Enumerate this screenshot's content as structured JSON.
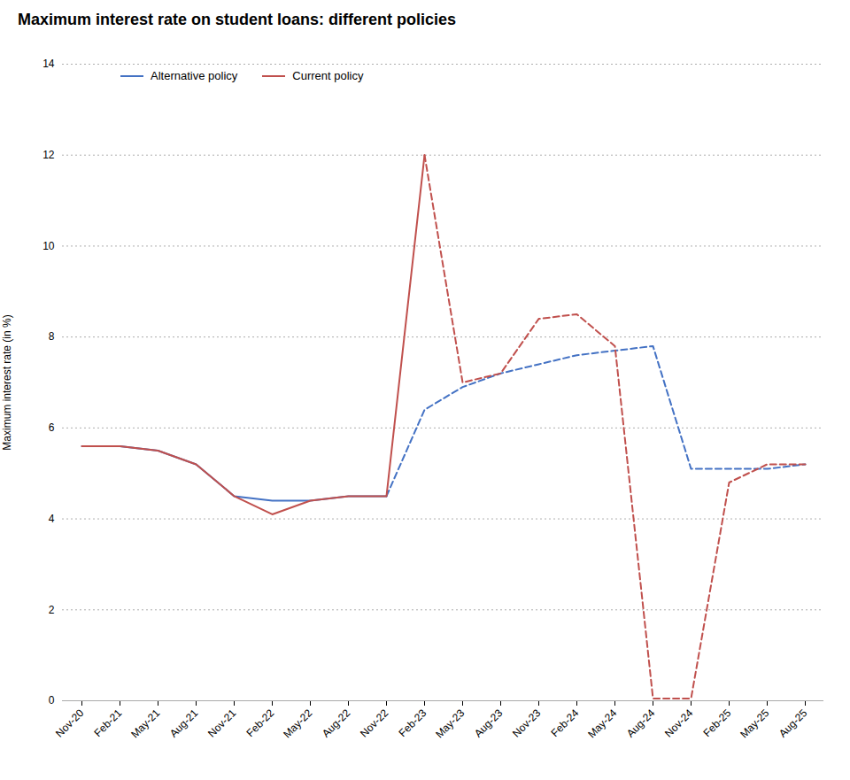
{
  "chart_data": {
    "type": "line",
    "title": "Maximum interest rate on student loans: different policies",
    "y_label": "Maximum interest rate (in %)",
    "categories": [
      "Nov-20",
      "Feb-21",
      "May-21",
      "Aug-21",
      "Nov-21",
      "Feb-22",
      "May-22",
      "Aug-22",
      "Nov-22",
      "Feb-23",
      "May-23",
      "Aug-23",
      "Nov-23",
      "Feb-24",
      "May-24",
      "Aug-24",
      "Nov-24",
      "Feb-25",
      "May-25",
      "Aug-25"
    ],
    "series": [
      {
        "name": "Alternative policy",
        "color": "#4472C4",
        "line_style": "solid",
        "values": [
          5.6,
          5.6,
          5.5,
          5.2,
          4.5,
          4.4,
          4.4,
          4.5,
          4.5,
          null,
          null,
          null,
          null,
          null,
          null,
          null,
          null,
          null,
          null,
          null
        ]
      },
      {
        "name": "Alternative policy",
        "color": "#4472C4",
        "line_style": "dashed",
        "values": [
          null,
          null,
          null,
          null,
          null,
          null,
          null,
          null,
          4.5,
          6.4,
          6.9,
          7.2,
          7.4,
          7.6,
          7.7,
          7.8,
          5.1,
          5.1,
          5.1,
          5.2
        ]
      },
      {
        "name": "Current policy",
        "color": "#C0504D",
        "line_style": "solid",
        "values": [
          5.6,
          5.6,
          5.5,
          5.2,
          4.5,
          4.1,
          4.4,
          4.5,
          4.5,
          12.0,
          null,
          null,
          null,
          null,
          null,
          null,
          null,
          null,
          null,
          null
        ]
      },
      {
        "name": "Current policy",
        "color": "#C0504D",
        "line_style": "dashed",
        "values": [
          null,
          null,
          null,
          null,
          null,
          null,
          null,
          null,
          null,
          12.0,
          7.0,
          7.2,
          8.4,
          8.5,
          7.8,
          0.05,
          0.05,
          4.8,
          5.2,
          5.2
        ]
      }
    ],
    "ylim": [
      0,
      14
    ],
    "yticks": [
      0,
      2,
      4,
      6,
      8,
      10,
      12,
      14
    ],
    "grid": true,
    "legend": "upper left"
  }
}
